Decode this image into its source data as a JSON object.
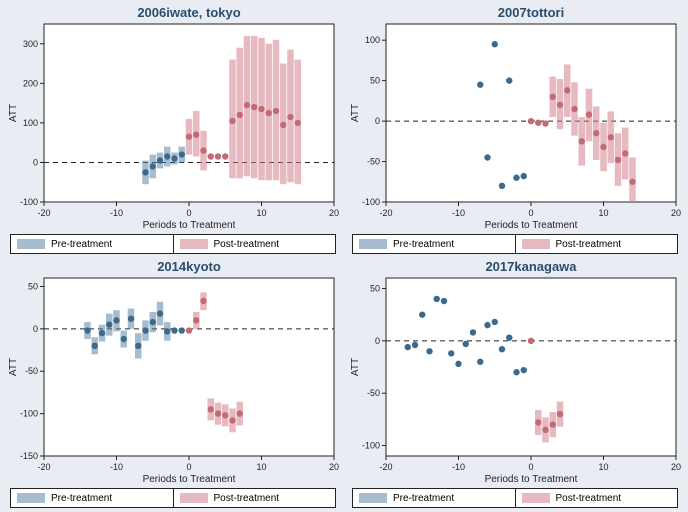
{
  "global": {
    "background_color": "#e9edf3",
    "plot_bg": "#ffffff",
    "border_color": "#222222",
    "grid_color": "#d8dee8",
    "pre_color": "#3b6a8e",
    "post_color": "#c46a74",
    "pre_fill": "rgba(94,135,168,0.55)",
    "post_fill": "rgba(210,130,140,0.55)",
    "zero_line_color": "#222222",
    "xlabel": "Periods to Treatment",
    "ylabel": "ATT",
    "legend_pre": "Pre-treatment",
    "legend_post": "Post-treatment",
    "title_color": "#2a4d6e",
    "marker_radius": 3.2,
    "bar_halfwidth": 0.45,
    "xlim": [
      -20,
      20
    ],
    "xtick_step": 10
  },
  "panels": [
    {
      "key": "iwate",
      "title": "2006iwate, tokyo",
      "ylim": [
        -100,
        350
      ],
      "ytick_step": 100,
      "ytick_start": -100,
      "pre": [
        {
          "t": -6,
          "y": -25,
          "lo": -55,
          "hi": 5
        },
        {
          "t": -5,
          "y": -10,
          "lo": -40,
          "hi": 20
        },
        {
          "t": -4,
          "y": 5,
          "lo": -15,
          "hi": 25
        },
        {
          "t": -3,
          "y": 15,
          "lo": -10,
          "hi": 40
        },
        {
          "t": -2,
          "y": 10,
          "lo": -5,
          "hi": 25
        },
        {
          "t": -1,
          "y": 20,
          "lo": 0,
          "hi": 40
        }
      ],
      "post": [
        {
          "t": 0,
          "y": 65,
          "lo": 20,
          "hi": 110
        },
        {
          "t": 1,
          "y": 70,
          "lo": 15,
          "hi": 130
        },
        {
          "t": 2,
          "y": 30,
          "lo": -20,
          "hi": 80
        },
        {
          "t": 3,
          "y": 15,
          "lo": 15,
          "hi": 15
        },
        {
          "t": 4,
          "y": 15,
          "lo": 15,
          "hi": 15
        },
        {
          "t": 5,
          "y": 15,
          "lo": 15,
          "hi": 15
        },
        {
          "t": 6,
          "y": 105,
          "lo": -40,
          "hi": 260
        },
        {
          "t": 7,
          "y": 120,
          "lo": -40,
          "hi": 290
        },
        {
          "t": 8,
          "y": 145,
          "lo": -35,
          "hi": 320
        },
        {
          "t": 9,
          "y": 140,
          "lo": -40,
          "hi": 320
        },
        {
          "t": 10,
          "y": 135,
          "lo": -45,
          "hi": 315
        },
        {
          "t": 11,
          "y": 125,
          "lo": -45,
          "hi": 300
        },
        {
          "t": 12,
          "y": 130,
          "lo": -45,
          "hi": 310
        },
        {
          "t": 13,
          "y": 95,
          "lo": -55,
          "hi": 250
        },
        {
          "t": 14,
          "y": 115,
          "lo": -50,
          "hi": 285
        },
        {
          "t": 15,
          "y": 100,
          "lo": -55,
          "hi": 260
        }
      ]
    },
    {
      "key": "tottori",
      "title": "2007tottori",
      "ylim": [
        -100,
        120
      ],
      "ytick_step": 50,
      "ytick_start": -100,
      "pre": [
        {
          "t": -7,
          "y": 45,
          "lo": 45,
          "hi": 45
        },
        {
          "t": -6,
          "y": -45,
          "lo": -45,
          "hi": -45
        },
        {
          "t": -5,
          "y": 95,
          "lo": 95,
          "hi": 95
        },
        {
          "t": -4,
          "y": -80,
          "lo": -80,
          "hi": -80
        },
        {
          "t": -3,
          "y": 50,
          "lo": 50,
          "hi": 50
        },
        {
          "t": -2,
          "y": -70,
          "lo": -70,
          "hi": -70
        },
        {
          "t": -1,
          "y": -68,
          "lo": -68,
          "hi": -68
        }
      ],
      "post": [
        {
          "t": 0,
          "y": 0,
          "lo": 0,
          "hi": 0
        },
        {
          "t": 1,
          "y": -2,
          "lo": -2,
          "hi": -2
        },
        {
          "t": 2,
          "y": -3,
          "lo": -3,
          "hi": -3
        },
        {
          "t": 3,
          "y": 30,
          "lo": 5,
          "hi": 55
        },
        {
          "t": 4,
          "y": 20,
          "lo": -10,
          "hi": 52
        },
        {
          "t": 5,
          "y": 38,
          "lo": 5,
          "hi": 70
        },
        {
          "t": 6,
          "y": 15,
          "lo": -18,
          "hi": 48
        },
        {
          "t": 7,
          "y": -25,
          "lo": -55,
          "hi": 5
        },
        {
          "t": 8,
          "y": 8,
          "lo": -25,
          "hi": 40
        },
        {
          "t": 9,
          "y": -15,
          "lo": -48,
          "hi": 18
        },
        {
          "t": 10,
          "y": -32,
          "lo": -62,
          "hi": -2
        },
        {
          "t": 11,
          "y": -20,
          "lo": -52,
          "hi": 12
        },
        {
          "t": 12,
          "y": -48,
          "lo": -80,
          "hi": -15
        },
        {
          "t": 13,
          "y": -40,
          "lo": -72,
          "hi": -8
        },
        {
          "t": 14,
          "y": -75,
          "lo": -100,
          "hi": -45
        }
      ]
    },
    {
      "key": "kyoto",
      "title": "2014kyoto",
      "ylim": [
        -150,
        60
      ],
      "ytick_step": 50,
      "ytick_start": -150,
      "pre": [
        {
          "t": -14,
          "y": -2,
          "lo": -12,
          "hi": 8
        },
        {
          "t": -13,
          "y": -20,
          "lo": -30,
          "hi": -10
        },
        {
          "t": -12,
          "y": -5,
          "lo": -15,
          "hi": 5
        },
        {
          "t": -11,
          "y": 5,
          "lo": -8,
          "hi": 18
        },
        {
          "t": -10,
          "y": 10,
          "lo": -3,
          "hi": 22
        },
        {
          "t": -9,
          "y": -12,
          "lo": -22,
          "hi": -2
        },
        {
          "t": -8,
          "y": 12,
          "lo": 0,
          "hi": 24
        },
        {
          "t": -7,
          "y": -20,
          "lo": -35,
          "hi": -5
        },
        {
          "t": -6,
          "y": -2,
          "lo": -14,
          "hi": 10
        },
        {
          "t": -5,
          "y": 8,
          "lo": -4,
          "hi": 20
        },
        {
          "t": -4,
          "y": 18,
          "lo": 4,
          "hi": 32
        },
        {
          "t": -3,
          "y": -3,
          "lo": -14,
          "hi": 8
        },
        {
          "t": -2,
          "y": -2,
          "lo": -2,
          "hi": -2
        },
        {
          "t": -1,
          "y": -2,
          "lo": -2,
          "hi": -2
        }
      ],
      "post": [
        {
          "t": 0,
          "y": -2,
          "lo": -2,
          "hi": -2
        },
        {
          "t": 1,
          "y": 10,
          "lo": 0,
          "hi": 20
        },
        {
          "t": 2,
          "y": 33,
          "lo": 22,
          "hi": 43
        },
        {
          "t": 3,
          "y": -95,
          "lo": -108,
          "hi": -82
        },
        {
          "t": 4,
          "y": -100,
          "lo": -113,
          "hi": -87
        },
        {
          "t": 5,
          "y": -102,
          "lo": -115,
          "hi": -89
        },
        {
          "t": 6,
          "y": -108,
          "lo": -122,
          "hi": -94
        },
        {
          "t": 7,
          "y": -100,
          "lo": -114,
          "hi": -86
        }
      ]
    },
    {
      "key": "kanagawa",
      "title": "2017kanagawa",
      "ylim": [
        -110,
        60
      ],
      "ytick_step": 50,
      "ytick_start": -100,
      "pre": [
        {
          "t": -17,
          "y": -6,
          "lo": -6,
          "hi": -6
        },
        {
          "t": -16,
          "y": -4,
          "lo": -4,
          "hi": -4
        },
        {
          "t": -15,
          "y": 25,
          "lo": 25,
          "hi": 25
        },
        {
          "t": -14,
          "y": -10,
          "lo": -10,
          "hi": -10
        },
        {
          "t": -13,
          "y": 40,
          "lo": 40,
          "hi": 40
        },
        {
          "t": -12,
          "y": 38,
          "lo": 38,
          "hi": 38
        },
        {
          "t": -11,
          "y": -12,
          "lo": -12,
          "hi": -12
        },
        {
          "t": -10,
          "y": -22,
          "lo": -22,
          "hi": -22
        },
        {
          "t": -9,
          "y": -3,
          "lo": -3,
          "hi": -3
        },
        {
          "t": -8,
          "y": 8,
          "lo": 8,
          "hi": 8
        },
        {
          "t": -7,
          "y": -20,
          "lo": -20,
          "hi": -20
        },
        {
          "t": -6,
          "y": 15,
          "lo": 15,
          "hi": 15
        },
        {
          "t": -5,
          "y": 18,
          "lo": 18,
          "hi": 18
        },
        {
          "t": -4,
          "y": -8,
          "lo": -8,
          "hi": -8
        },
        {
          "t": -3,
          "y": 3,
          "lo": 3,
          "hi": 3
        },
        {
          "t": -2,
          "y": -30,
          "lo": -30,
          "hi": -30
        },
        {
          "t": -1,
          "y": -28,
          "lo": -28,
          "hi": -28
        }
      ],
      "post": [
        {
          "t": 0,
          "y": 0,
          "lo": 0,
          "hi": 0
        },
        {
          "t": 1,
          "y": -78,
          "lo": -90,
          "hi": -66
        },
        {
          "t": 2,
          "y": -85,
          "lo": -97,
          "hi": -73
        },
        {
          "t": 3,
          "y": -80,
          "lo": -92,
          "hi": -68
        },
        {
          "t": 4,
          "y": -70,
          "lo": -82,
          "hi": -58
        }
      ]
    }
  ]
}
